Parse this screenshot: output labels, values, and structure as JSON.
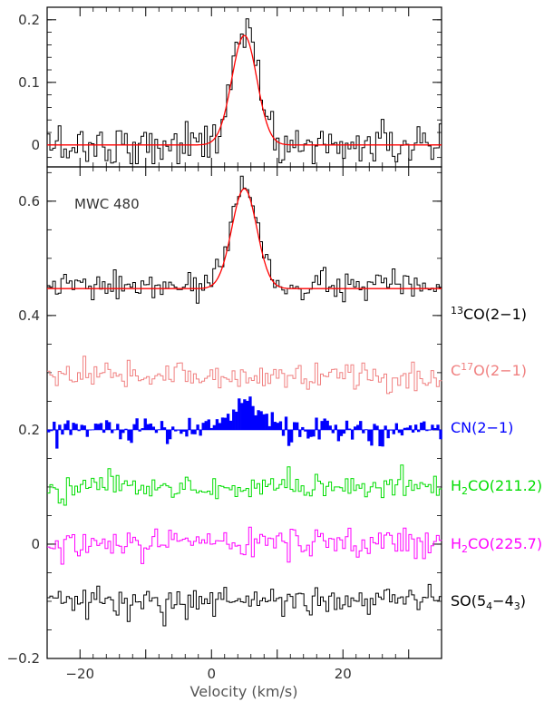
{
  "chart_data": [
    {
      "type": "line",
      "title": "",
      "xlabel": "",
      "ylabel": "",
      "xlim": [
        -25,
        35
      ],
      "ylim": [
        -0.035,
        0.22
      ],
      "y_ticks": [
        {
          "value": 0,
          "label": "0"
        },
        {
          "value": 0.1,
          "label": "0.1"
        },
        {
          "value": 0.2,
          "label": "0.2"
        }
      ],
      "series": [
        {
          "role": "spectrum",
          "style": "step",
          "color": "#000000",
          "baseline": 0.0,
          "noise_rms": 0.018,
          "peak_center": 5.0,
          "peak_width": 1.9,
          "peak_amplitude": 0.19,
          "channel_width": 0.42
        },
        {
          "role": "fit",
          "style": "smooth",
          "color": "#ff0000",
          "baseline": 0.0,
          "gauss_center": 5.0,
          "gauss_sigma": 1.9,
          "gauss_amplitude": 0.175
        }
      ]
    },
    {
      "type": "line",
      "title": "",
      "xlabel": "Velocity (km/s)",
      "ylabel": "",
      "xlim": [
        -25,
        35
      ],
      "ylim": [
        -0.2,
        0.66
      ],
      "x_ticks": [
        {
          "value": -20,
          "label": "−20"
        },
        {
          "value": 0,
          "label": "0"
        },
        {
          "value": 20,
          "label": "20"
        }
      ],
      "y_ticks": [
        {
          "value": -0.2,
          "label": "−0.2"
        },
        {
          "value": 0,
          "label": "0"
        },
        {
          "value": 0.2,
          "label": "0.2"
        },
        {
          "value": 0.4,
          "label": "0.4"
        },
        {
          "value": 0.6,
          "label": "0.6"
        }
      ],
      "annotation": "MWC 480",
      "series": [
        {
          "role": "13CO",
          "style": "step",
          "color": "#000000",
          "baseline": 0.45,
          "noise_rms": 0.013,
          "peak_center": 5.0,
          "peak_width": 1.9,
          "peak_amplitude": 0.19,
          "channel_width": 0.42
        },
        {
          "role": "13CO-fit",
          "style": "smooth",
          "color": "#ff0000",
          "baseline": 0.447,
          "gauss_center": 5.0,
          "gauss_sigma": 1.9,
          "gauss_amplitude": 0.175
        },
        {
          "role": "C17O",
          "style": "step",
          "color": "#f08080",
          "baseline": 0.295,
          "noise_rms": 0.013,
          "channel_width": 0.42
        },
        {
          "role": "CN",
          "style": "filled-step",
          "color": "#0000ff",
          "baseline": 0.2,
          "noise_rms": 0.012,
          "peak_center": 5.0,
          "peak_width": 2.6,
          "peak_amplitude": 0.05,
          "channel_width": 0.42
        },
        {
          "role": "H2CO-211",
          "style": "step",
          "color": "#00dd00",
          "baseline": 0.1,
          "noise_rms": 0.012,
          "channel_width": 0.42
        },
        {
          "role": "H2CO-225",
          "style": "step",
          "color": "#ff00ff",
          "baseline": 0.0,
          "noise_rms": 0.013,
          "channel_width": 0.42
        },
        {
          "role": "SO",
          "style": "step",
          "color": "#000000",
          "baseline": -0.1,
          "noise_rms": 0.012,
          "channel_width": 0.42
        }
      ]
    }
  ],
  "labels": {
    "co13": {
      "sup": "13",
      "main": "CO(2−1)",
      "color": "#000000"
    },
    "c17o": {
      "pre": "C",
      "sup": "17",
      "main": "O(2−1)",
      "color": "#f08080"
    },
    "cn": {
      "main": "CN(2−1)",
      "color": "#0000ff"
    },
    "h2co211": {
      "pre": "H",
      "sub": "2",
      "main": "CO(211.2)",
      "color": "#00dd00"
    },
    "h2co225": {
      "pre": "H",
      "sub": "2",
      "main": "CO(225.7)",
      "color": "#ff00ff"
    },
    "so": {
      "pre": "SO(5",
      "sub1": "4",
      "mid": "−4",
      "sub2": "3",
      "post": ")",
      "color": "#000000"
    }
  }
}
